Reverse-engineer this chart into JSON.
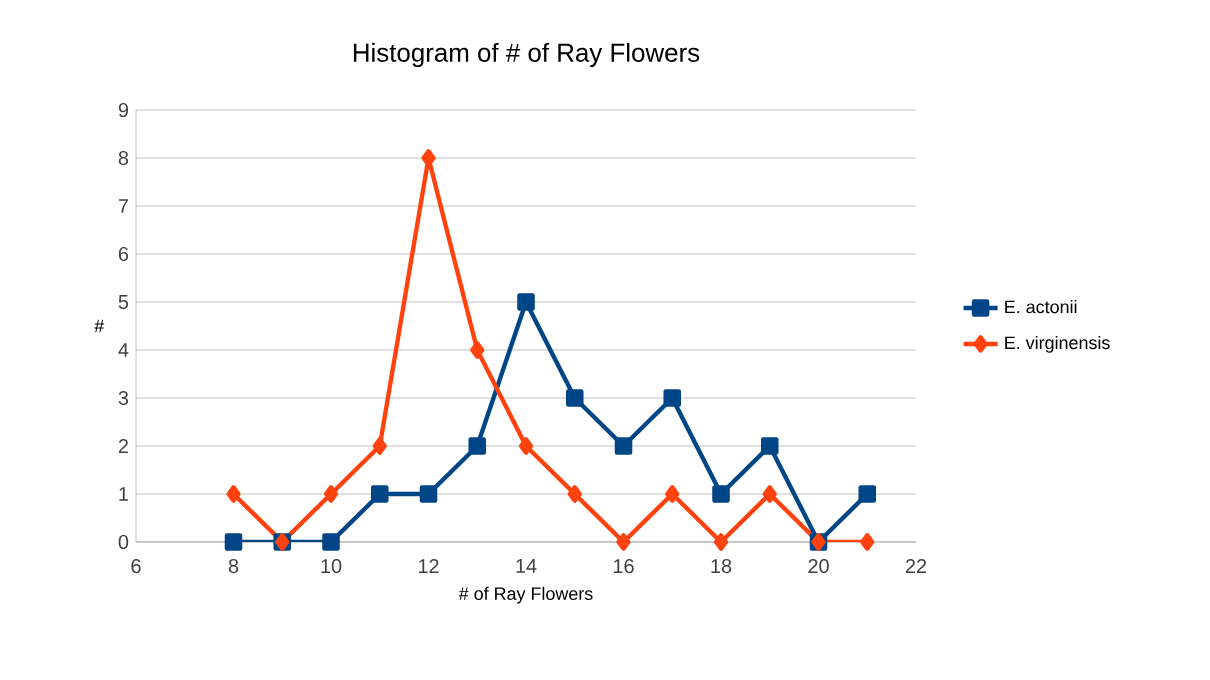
{
  "chart_data": {
    "type": "line",
    "title": "Histogram of # of Ray Flowers",
    "xlabel": "# of Ray Flowers",
    "ylabel": "#",
    "x": [
      8,
      9,
      10,
      11,
      12,
      13,
      14,
      15,
      16,
      17,
      18,
      19,
      20,
      21
    ],
    "series": [
      {
        "name": "E. actonii",
        "color": "#004586",
        "marker": "square",
        "values": [
          0,
          0,
          0,
          1,
          1,
          2,
          5,
          3,
          2,
          3,
          1,
          2,
          0,
          1
        ]
      },
      {
        "name": "E. virginensis",
        "color": "#ff420e",
        "marker": "diamond",
        "values": [
          1,
          0,
          1,
          2,
          8,
          4,
          2,
          1,
          0,
          1,
          0,
          1,
          0,
          0
        ]
      }
    ],
    "xlim": [
      6,
      22
    ],
    "xticks": [
      6,
      8,
      10,
      12,
      14,
      16,
      18,
      20,
      22
    ],
    "ylim": [
      0,
      9
    ],
    "yticks": [
      0,
      1,
      2,
      3,
      4,
      5,
      6,
      7,
      8,
      9
    ],
    "grid": "y",
    "legend": "right",
    "line_style": "solid"
  }
}
